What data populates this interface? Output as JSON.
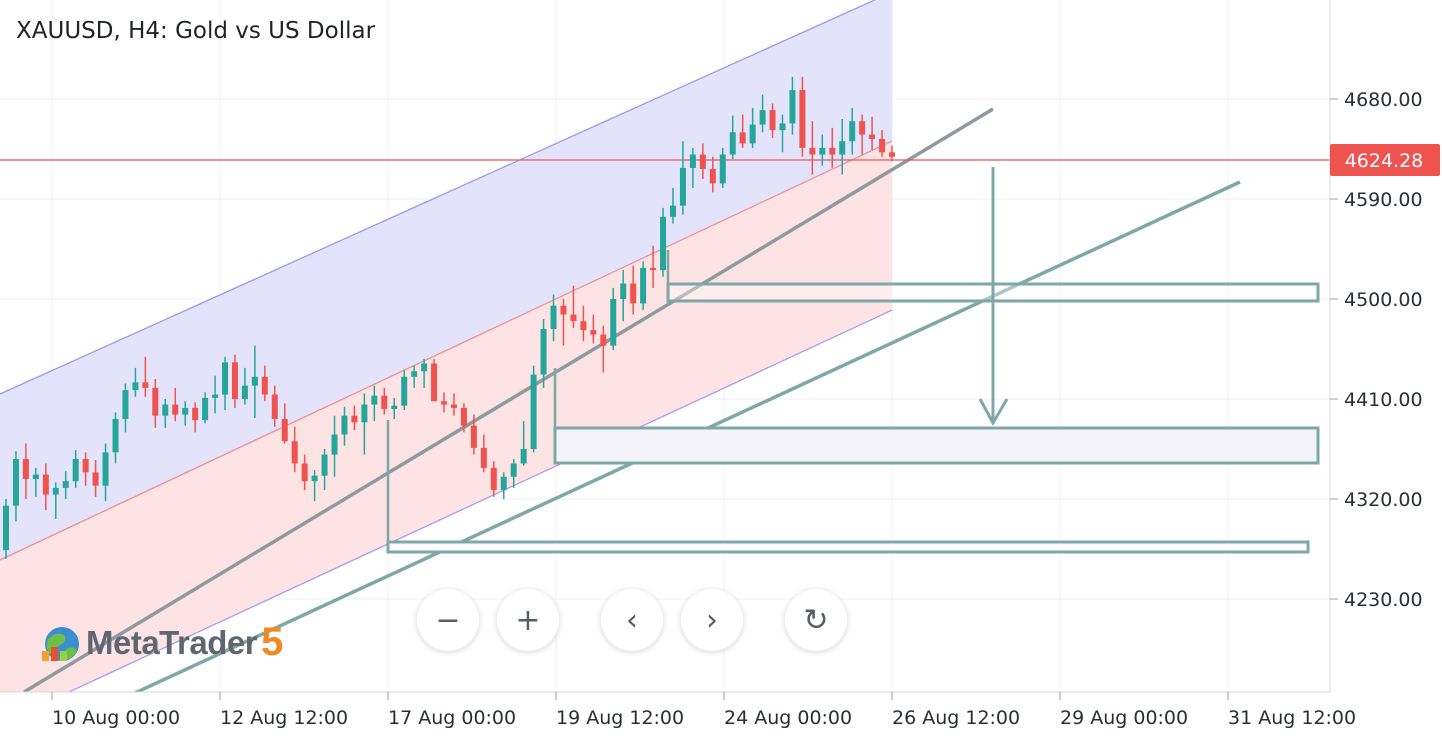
{
  "header": {
    "title": "XAUUSD, H4: Gold vs US Dollar"
  },
  "logo": {
    "text": "MetaTrader",
    "version": "5"
  },
  "controls": {
    "zoom_out": "−",
    "zoom_in": "+",
    "prev": "‹",
    "next": "›",
    "reset": "↻"
  },
  "colors": {
    "bull": "#26a69a",
    "bear": "#ef5350",
    "channel_upper_fill": "#e3e3fb",
    "channel_lower_fill": "#fde3e3",
    "trendline": "#7ea8a8",
    "price_line": "#ef5350"
  },
  "chart_data": {
    "type": "candlestick",
    "symbol": "XAUUSD",
    "timeframe": "H4",
    "current_price": 4624.28,
    "current_price_label": "4624.28",
    "y_axis": {
      "range": [
        4160,
        4720
      ],
      "ticks": [
        "4680.00",
        "4590.00",
        "4500.00",
        "4410.00",
        "4320.00",
        "4230.00"
      ]
    },
    "x_axis": {
      "ticks": [
        "10 Aug 00:00",
        "12 Aug 12:00",
        "17 Aug 00:00",
        "19 Aug 12:00",
        "24 Aug 00:00",
        "26 Aug 12:00",
        "29 Aug 00:00",
        "31 Aug 12:00"
      ]
    },
    "candles": [
      [
        4274,
        4320,
        4266,
        4314
      ],
      [
        4314,
        4363,
        4300,
        4356
      ],
      [
        4356,
        4370,
        4320,
        4338
      ],
      [
        4338,
        4348,
        4322,
        4342
      ],
      [
        4342,
        4352,
        4310,
        4324
      ],
      [
        4324,
        4335,
        4302,
        4330
      ],
      [
        4330,
        4345,
        4320,
        4336
      ],
      [
        4336,
        4364,
        4330,
        4356
      ],
      [
        4356,
        4362,
        4332,
        4344
      ],
      [
        4344,
        4355,
        4322,
        4332
      ],
      [
        4332,
        4370,
        4318,
        4362
      ],
      [
        4362,
        4398,
        4352,
        4392
      ],
      [
        4392,
        4424,
        4380,
        4418
      ],
      [
        4418,
        4438,
        4412,
        4425
      ],
      [
        4425,
        4448,
        4412,
        4420
      ],
      [
        4420,
        4428,
        4384,
        4395
      ],
      [
        4395,
        4410,
        4384,
        4405
      ],
      [
        4405,
        4420,
        4390,
        4396
      ],
      [
        4396,
        4408,
        4386,
        4402
      ],
      [
        4402,
        4407,
        4380,
        4391
      ],
      [
        4391,
        4416,
        4388,
        4411
      ],
      [
        4411,
        4431,
        4397,
        4414
      ],
      [
        4414,
        4448,
        4400,
        4443
      ],
      [
        4443,
        4450,
        4402,
        4410
      ],
      [
        4410,
        4438,
        4405,
        4422
      ],
      [
        4422,
        4458,
        4393,
        4430
      ],
      [
        4430,
        4440,
        4408,
        4414
      ],
      [
        4414,
        4422,
        4385,
        4392
      ],
      [
        4392,
        4406,
        4370,
        4372
      ],
      [
        4372,
        4385,
        4344,
        4352
      ],
      [
        4352,
        4360,
        4328,
        4336
      ],
      [
        4336,
        4346,
        4318,
        4341
      ],
      [
        4341,
        4365,
        4328,
        4360
      ],
      [
        4360,
        4395,
        4340,
        4378
      ],
      [
        4378,
        4403,
        4368,
        4395
      ],
      [
        4395,
        4404,
        4382,
        4389
      ],
      [
        4389,
        4415,
        4360,
        4405
      ],
      [
        4405,
        4422,
        4390,
        4413
      ],
      [
        4413,
        4420,
        4396,
        4401
      ],
      [
        4401,
        4411,
        4392,
        4404
      ],
      [
        4404,
        4436,
        4400,
        4430
      ],
      [
        4430,
        4440,
        4420,
        4435
      ],
      [
        4435,
        4446,
        4420,
        4442
      ],
      [
        4442,
        4446,
        4410,
        4408
      ],
      [
        4408,
        4416,
        4398,
        4405
      ],
      [
        4405,
        4415,
        4395,
        4402
      ],
      [
        4402,
        4406,
        4380,
        4386
      ],
      [
        4386,
        4396,
        4360,
        4366
      ],
      [
        4366,
        4378,
        4344,
        4348
      ],
      [
        4348,
        4354,
        4322,
        4328
      ],
      [
        4328,
        4344,
        4320,
        4340
      ],
      [
        4340,
        4356,
        4330,
        4352
      ],
      [
        4352,
        4390,
        4350,
        4365
      ],
      [
        4365,
        4440,
        4362,
        4432
      ],
      [
        4432,
        4482,
        4420,
        4473
      ],
      [
        4473,
        4504,
        4462,
        4494
      ],
      [
        4494,
        4500,
        4458,
        4486
      ],
      [
        4486,
        4512,
        4474,
        4480
      ],
      [
        4480,
        4494,
        4462,
        4472
      ],
      [
        4472,
        4486,
        4460,
        4468
      ],
      [
        4468,
        4476,
        4434,
        4458
      ],
      [
        4458,
        4510,
        4454,
        4500
      ],
      [
        4500,
        4526,
        4480,
        4514
      ],
      [
        4514,
        4530,
        4486,
        4496
      ],
      [
        4496,
        4534,
        4490,
        4528
      ],
      [
        4528,
        4548,
        4510,
        4526
      ],
      [
        4526,
        4582,
        4520,
        4574
      ],
      [
        4574,
        4600,
        4568,
        4584
      ],
      [
        4584,
        4642,
        4576,
        4618
      ],
      [
        4618,
        4636,
        4600,
        4630
      ],
      [
        4630,
        4640,
        4608,
        4617
      ],
      [
        4617,
        4628,
        4596,
        4604
      ],
      [
        4604,
        4636,
        4600,
        4630
      ],
      [
        4630,
        4665,
        4626,
        4650
      ],
      [
        4650,
        4666,
        4636,
        4640
      ],
      [
        4640,
        4672,
        4636,
        4657
      ],
      [
        4657,
        4684,
        4650,
        4670
      ],
      [
        4670,
        4676,
        4645,
        4652
      ],
      [
        4652,
        4666,
        4632,
        4658
      ],
      [
        4658,
        4700,
        4648,
        4688
      ],
      [
        4688,
        4700,
        4628,
        4636
      ],
      [
        4636,
        4660,
        4612,
        4630
      ],
      [
        4630,
        4648,
        4620,
        4636
      ],
      [
        4636,
        4654,
        4618,
        4630
      ],
      [
        4630,
        4662,
        4612,
        4642
      ],
      [
        4642,
        4672,
        4630,
        4660
      ],
      [
        4660,
        4666,
        4630,
        4648
      ],
      [
        4648,
        4664,
        4634,
        4644
      ],
      [
        4644,
        4652,
        4628,
        4632
      ],
      [
        4632,
        4638,
        4624,
        4628
      ]
    ]
  }
}
